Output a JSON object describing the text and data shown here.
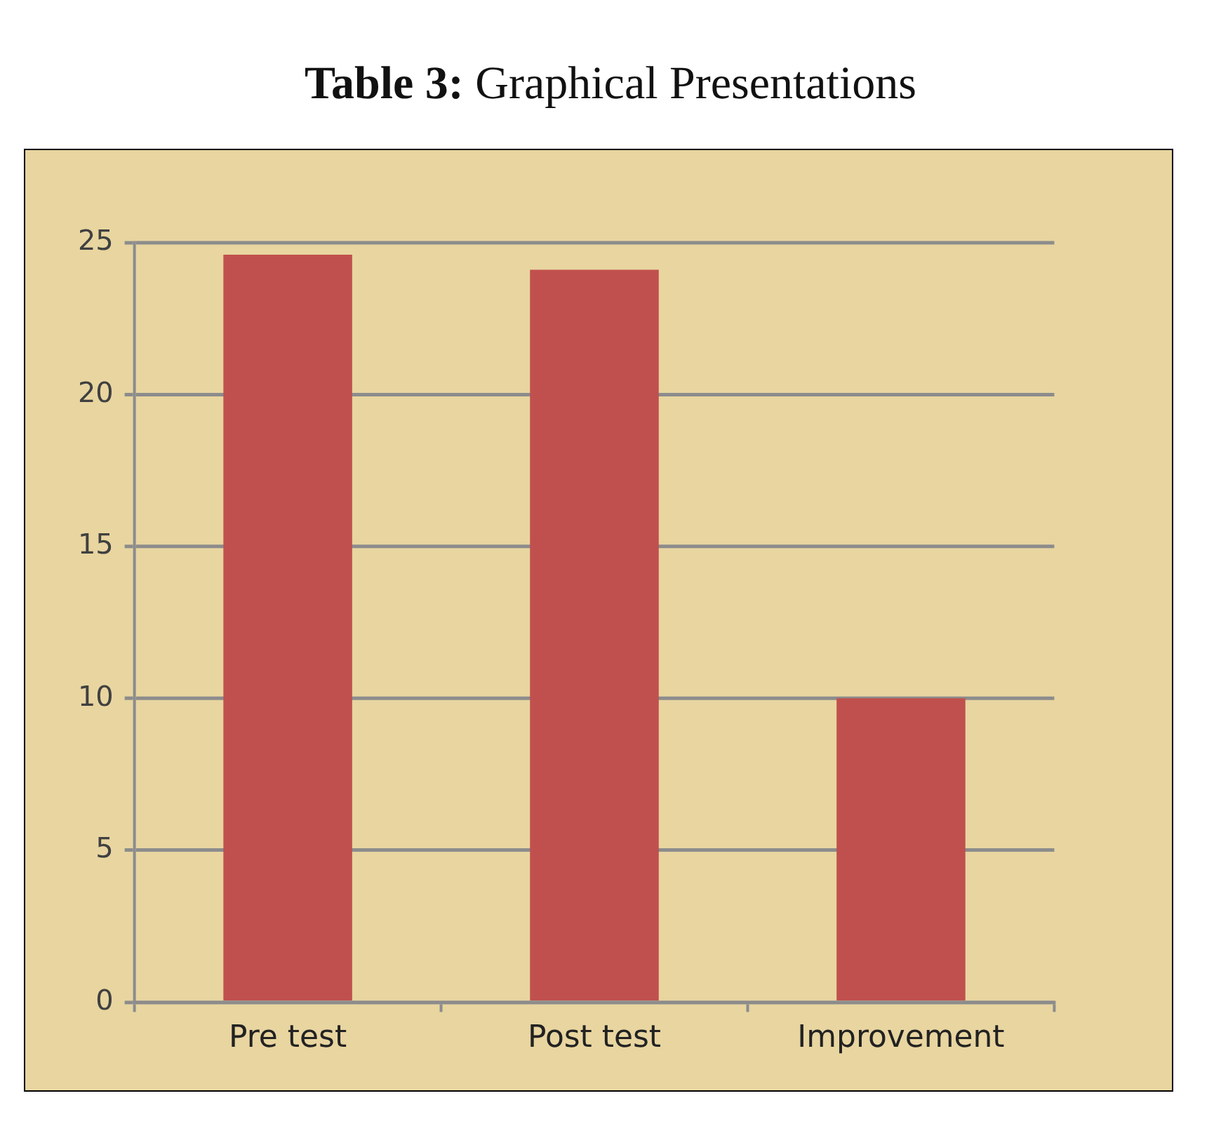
{
  "chart_data": {
    "type": "bar",
    "title": "Table 3: Graphical Presentations",
    "categories": [
      "Pre test",
      "Post test",
      "Improvement"
    ],
    "values": [
      24.6,
      24.1,
      10
    ],
    "color": "#c0504d",
    "ylim": [
      0,
      25
    ],
    "yticks": [
      0,
      5,
      10,
      15,
      20,
      25
    ],
    "grid": "y"
  }
}
